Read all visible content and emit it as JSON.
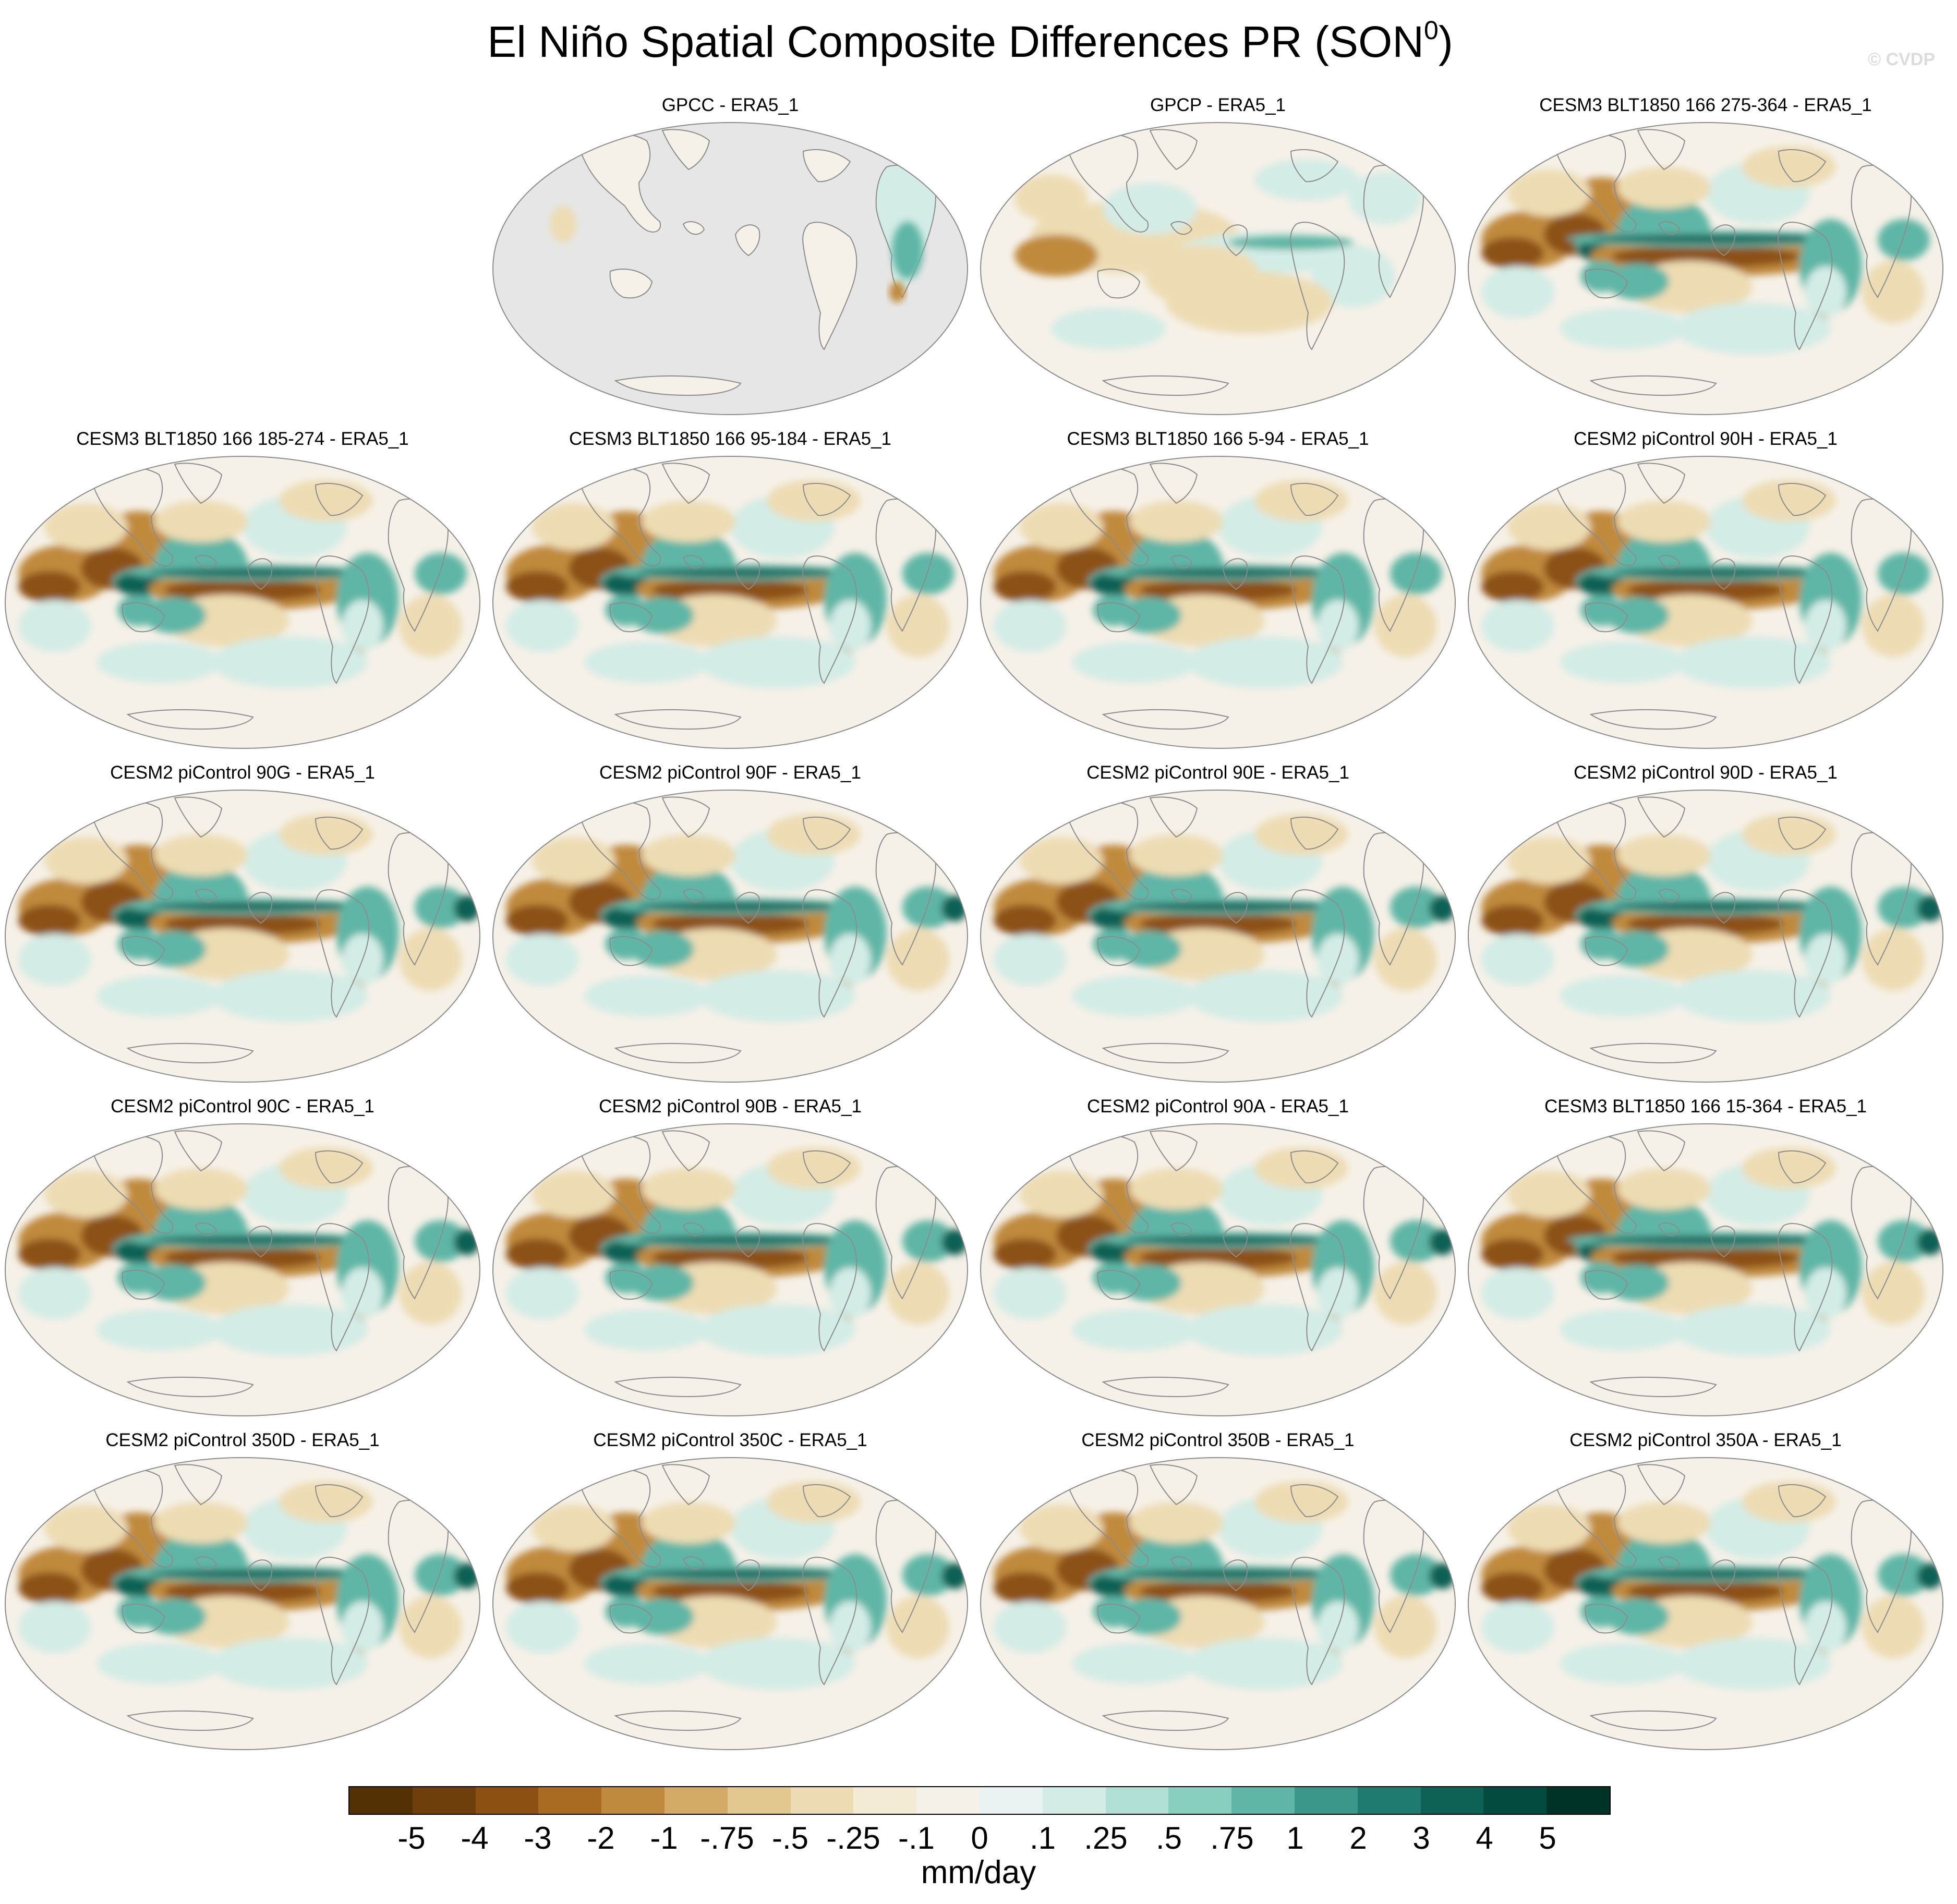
{
  "title": "El Niño Spatial Composite Differences PR (SON",
  "title_superscript": "0",
  "title_suffix": ")",
  "credit": "© CVDP",
  "panels": [
    {
      "label": "GPCC - ERA5_1",
      "land_only": true
    },
    {
      "label": "GPCP - ERA5_1"
    },
    {
      "label": "CESM3 BLT1850 166 275-364 - ERA5_1"
    },
    {
      "label": "CESM3 BLT1850 166 185-274 - ERA5_1"
    },
    {
      "label": "CESM3 BLT1850 166 95-184 - ERA5_1"
    },
    {
      "label": "CESM3 BLT1850 166 5-94 - ERA5_1"
    },
    {
      "label": "CESM2 piControl 90H - ERA5_1"
    },
    {
      "label": "CESM2 piControl 90G - ERA5_1"
    },
    {
      "label": "CESM2 piControl 90F - ERA5_1"
    },
    {
      "label": "CESM2 piControl 90E - ERA5_1"
    },
    {
      "label": "CESM2 piControl 90D - ERA5_1"
    },
    {
      "label": "CESM2 piControl 90C - ERA5_1"
    },
    {
      "label": "CESM2 piControl 90B - ERA5_1"
    },
    {
      "label": "CESM2 piControl 90A - ERA5_1"
    },
    {
      "label": "CESM3 BLT1850 166 15-364 - ERA5_1"
    },
    {
      "label": "CESM2 piControl 350D - ERA5_1"
    },
    {
      "label": "CESM2 piControl 350C - ERA5_1"
    },
    {
      "label": "CESM2 piControl 350B - ERA5_1"
    },
    {
      "label": "CESM2 piControl 350A - ERA5_1"
    }
  ],
  "colorbar": {
    "units": "mm/day",
    "tick_labels": [
      "-5",
      "-4",
      "-3",
      "-2",
      "-1",
      "-.75",
      "-.5",
      "-.25",
      "-.1",
      "0",
      ".1",
      ".25",
      ".5",
      ".75",
      "1",
      "2",
      "3",
      "4",
      "5"
    ],
    "colors": [
      "#543005",
      "#6e3f0a",
      "#8c5112",
      "#a96a22",
      "#c08a3e",
      "#d3ab66",
      "#e2c78f",
      "#eddcb3",
      "#f4ebd4",
      "#f6f1e8",
      "#eaf3f1",
      "#d3ece6",
      "#b0e0d6",
      "#88cfc0",
      "#5fb6a6",
      "#3a978a",
      "#1f7b6f",
      "#0d6155",
      "#024b3e",
      "#003328"
    ]
  },
  "map_colors": {
    "missing": "#e6e6e6",
    "outline": "#8c8c8c",
    "background": "#f6f1e8",
    "dry_strong": "#8c5112",
    "dry_moderate": "#c08a3e",
    "dry_weak": "#eddcb3",
    "wet_weak": "#d3ece6",
    "wet_moderate": "#5fb6a6",
    "wet_strong": "#0d6155"
  }
}
